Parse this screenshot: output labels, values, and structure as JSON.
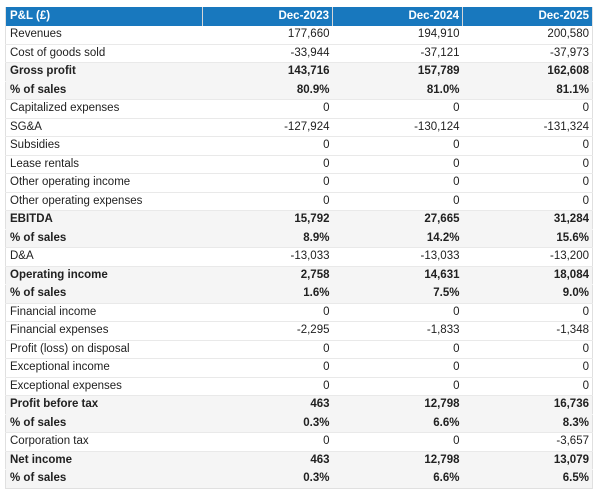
{
  "table": {
    "header": {
      "label": "P&L (£)",
      "columns": [
        "Dec-2023",
        "Dec-2024",
        "Dec-2025"
      ]
    },
    "rows": [
      {
        "label": "Revenues",
        "values": [
          "177,660",
          "194,910",
          "200,580"
        ],
        "emphasis": false
      },
      {
        "label": "Cost of goods sold",
        "values": [
          "-33,944",
          "-37,121",
          "-37,973"
        ],
        "emphasis": false
      },
      {
        "label": "Gross profit",
        "values": [
          "143,716",
          "157,789",
          "162,608"
        ],
        "emphasis": true
      },
      {
        "label": "% of sales",
        "values": [
          "80.9%",
          "81.0%",
          "81.1%"
        ],
        "emphasis": true
      },
      {
        "label": "Capitalized expenses",
        "values": [
          "0",
          "0",
          "0"
        ],
        "emphasis": false
      },
      {
        "label": "SG&A",
        "values": [
          "-127,924",
          "-130,124",
          "-131,324"
        ],
        "emphasis": false
      },
      {
        "label": "Subsidies",
        "values": [
          "0",
          "0",
          "0"
        ],
        "emphasis": false
      },
      {
        "label": "Lease rentals",
        "values": [
          "0",
          "0",
          "0"
        ],
        "emphasis": false
      },
      {
        "label": "Other operating income",
        "values": [
          "0",
          "0",
          "0"
        ],
        "emphasis": false
      },
      {
        "label": "Other operating expenses",
        "values": [
          "0",
          "0",
          "0"
        ],
        "emphasis": false
      },
      {
        "label": "EBITDA",
        "values": [
          "15,792",
          "27,665",
          "31,284"
        ],
        "emphasis": true
      },
      {
        "label": "% of sales",
        "values": [
          "8.9%",
          "14.2%",
          "15.6%"
        ],
        "emphasis": true
      },
      {
        "label": "D&A",
        "values": [
          "-13,033",
          "-13,033",
          "-13,200"
        ],
        "emphasis": false
      },
      {
        "label": "Operating income",
        "values": [
          "2,758",
          "14,631",
          "18,084"
        ],
        "emphasis": true
      },
      {
        "label": "% of sales",
        "values": [
          "1.6%",
          "7.5%",
          "9.0%"
        ],
        "emphasis": true
      },
      {
        "label": "Financial income",
        "values": [
          "0",
          "0",
          "0"
        ],
        "emphasis": false
      },
      {
        "label": "Financial expenses",
        "values": [
          "-2,295",
          "-1,833",
          "-1,348"
        ],
        "emphasis": false
      },
      {
        "label": "Profit (loss) on disposal",
        "values": [
          "0",
          "0",
          "0"
        ],
        "emphasis": false
      },
      {
        "label": "Exceptional income",
        "values": [
          "0",
          "0",
          "0"
        ],
        "emphasis": false
      },
      {
        "label": "Exceptional expenses",
        "values": [
          "0",
          "0",
          "0"
        ],
        "emphasis": false
      },
      {
        "label": "Profit before tax",
        "values": [
          "463",
          "12,798",
          "16,736"
        ],
        "emphasis": true
      },
      {
        "label": "% of sales",
        "values": [
          "0.3%",
          "6.6%",
          "8.3%"
        ],
        "emphasis": true
      },
      {
        "label": "Corporation tax",
        "values": [
          "0",
          "0",
          "-3,657"
        ],
        "emphasis": false
      },
      {
        "label": "Net income",
        "values": [
          "463",
          "12,798",
          "13,079"
        ],
        "emphasis": true
      },
      {
        "label": "% of sales",
        "values": [
          "0.3%",
          "6.6%",
          "6.5%"
        ],
        "emphasis": true
      }
    ]
  },
  "chart_data": {
    "type": "table",
    "title": "P&L (£)",
    "columns": [
      "Dec-2023",
      "Dec-2024",
      "Dec-2025"
    ],
    "series": [
      {
        "name": "Revenues",
        "values": [
          177660,
          194910,
          200580
        ]
      },
      {
        "name": "Cost of goods sold",
        "values": [
          -33944,
          -37121,
          -37973
        ]
      },
      {
        "name": "Gross profit",
        "values": [
          143716,
          157789,
          162608
        ]
      },
      {
        "name": "% of sales (gross profit)",
        "values": [
          80.9,
          81.0,
          81.1
        ],
        "unit": "%"
      },
      {
        "name": "Capitalized expenses",
        "values": [
          0,
          0,
          0
        ]
      },
      {
        "name": "SG&A",
        "values": [
          -127924,
          -130124,
          -131324
        ]
      },
      {
        "name": "Subsidies",
        "values": [
          0,
          0,
          0
        ]
      },
      {
        "name": "Lease rentals",
        "values": [
          0,
          0,
          0
        ]
      },
      {
        "name": "Other operating income",
        "values": [
          0,
          0,
          0
        ]
      },
      {
        "name": "Other operating expenses",
        "values": [
          0,
          0,
          0
        ]
      },
      {
        "name": "EBITDA",
        "values": [
          15792,
          27665,
          31284
        ]
      },
      {
        "name": "% of sales (EBITDA)",
        "values": [
          8.9,
          14.2,
          15.6
        ],
        "unit": "%"
      },
      {
        "name": "D&A",
        "values": [
          -13033,
          -13033,
          -13200
        ]
      },
      {
        "name": "Operating income",
        "values": [
          2758,
          14631,
          18084
        ]
      },
      {
        "name": "% of sales (operating income)",
        "values": [
          1.6,
          7.5,
          9.0
        ],
        "unit": "%"
      },
      {
        "name": "Financial income",
        "values": [
          0,
          0,
          0
        ]
      },
      {
        "name": "Financial expenses",
        "values": [
          -2295,
          -1833,
          -1348
        ]
      },
      {
        "name": "Profit (loss) on disposal",
        "values": [
          0,
          0,
          0
        ]
      },
      {
        "name": "Exceptional income",
        "values": [
          0,
          0,
          0
        ]
      },
      {
        "name": "Exceptional expenses",
        "values": [
          0,
          0,
          0
        ]
      },
      {
        "name": "Profit before tax",
        "values": [
          463,
          12798,
          16736
        ]
      },
      {
        "name": "% of sales (profit before tax)",
        "values": [
          0.3,
          6.6,
          8.3
        ],
        "unit": "%"
      },
      {
        "name": "Corporation tax",
        "values": [
          0,
          0,
          -3657
        ]
      },
      {
        "name": "Net income",
        "values": [
          463,
          12798,
          13079
        ]
      },
      {
        "name": "% of sales (net income)",
        "values": [
          0.3,
          6.6,
          6.5
        ],
        "unit": "%"
      }
    ]
  },
  "colors": {
    "header_bg": "#1878be",
    "header_text": "#ffffff",
    "band_row_bg": "#f5f5f5",
    "row_border": "#e9e9e9",
    "outer_border": "#e0e0e0",
    "text": "#212121"
  }
}
